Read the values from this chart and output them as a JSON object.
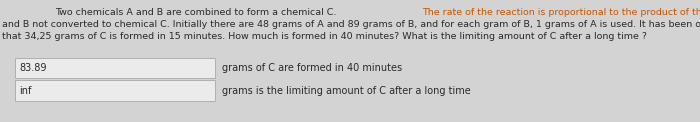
{
  "bg_color": "#d3d3d3",
  "normal_color": "#2a2a2a",
  "highlight_color": "#cc5500",
  "line1_normal": "Two chemicals A and B are combined to form a chemical C. ",
  "line1_orange": "The rate of the reaction is proportional to the product of the instantaneous amounts of A",
  "line2": "and B not converted to chemical C. Initially there are 48 grams of A and 89 grams of B, and for each gram of B, 1 grams of A is used. It has been observed",
  "line3": "that 34,25 grams of C is formed in 15 minutes. How much is formed in 40 minutes? What is the limiting amount of C after a long time ?",
  "rows": [
    {
      "value": "83.89",
      "label": "grams of C are formed in 40 minutes"
    },
    {
      "value": "inf",
      "label": "grams is the limiting amount of C after a long time"
    }
  ],
  "box_bg": "#ebebeb",
  "box_border": "#b0b0b0",
  "text_fontsize": 6.8,
  "label_fontsize": 7.0,
  "value_fontsize": 7.0
}
